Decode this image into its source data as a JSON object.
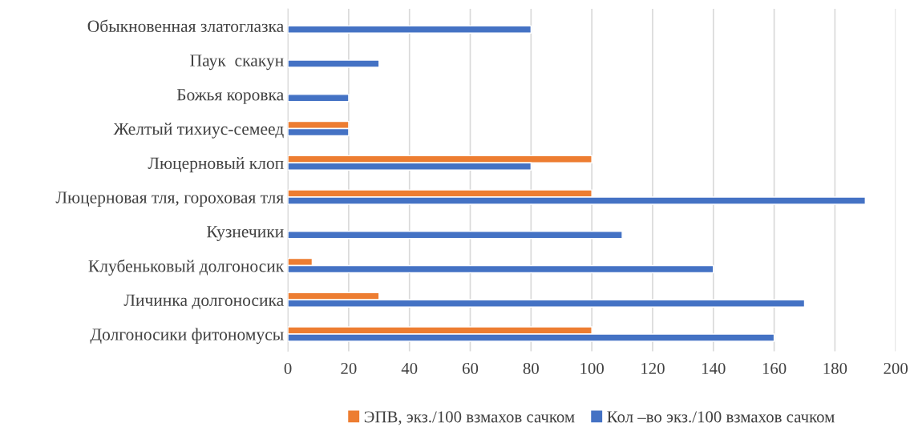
{
  "chart_data": {
    "type": "bar",
    "orientation": "horizontal",
    "categories": [
      "Обыкновенная златоглазка",
      "Паук  скакун",
      "Божья коровка",
      "Желтый тихиус-семеед",
      "Люцерновый клоп",
      "Люцерновая тля, гороховая тля",
      "Кузнечики",
      "Клубеньковый долгоносик",
      "Личинка долгоносика",
      "Долгоносики фитономусы"
    ],
    "series": [
      {
        "name": "ЭПВ, экз./100 взмахов сачком",
        "color": "#ed7d31",
        "values": [
          null,
          null,
          null,
          20,
          100,
          100,
          null,
          8,
          30,
          100
        ]
      },
      {
        "name": "Кол –во экз./100 взмахов сачком",
        "color": "#4472c4",
        "values": [
          80,
          30,
          20,
          20,
          80,
          190,
          110,
          140,
          170,
          160
        ]
      }
    ],
    "xlim": [
      0,
      200
    ],
    "xticks": [
      0,
      20,
      40,
      60,
      80,
      100,
      120,
      140,
      160,
      180,
      200
    ],
    "grid": "x",
    "legend": "bottom"
  }
}
